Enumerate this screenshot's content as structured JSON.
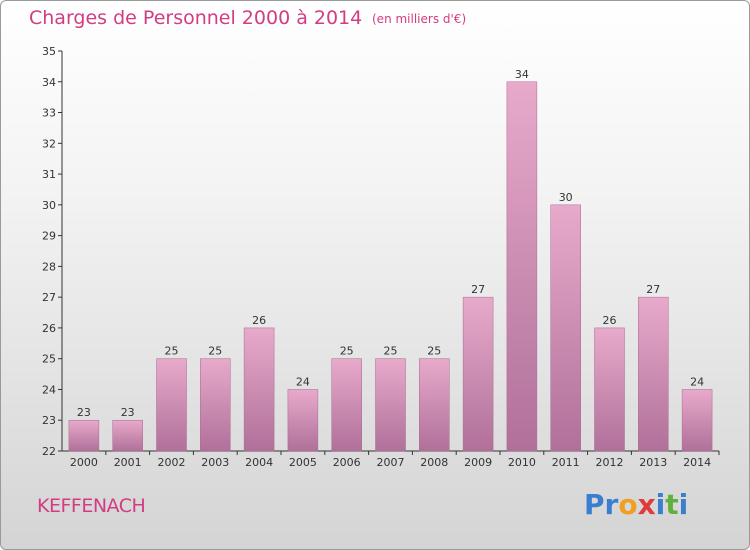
{
  "header": {
    "title": "Charges de Personnel 2000 à 2014",
    "subtitle": "(en milliers d'€)"
  },
  "footer": {
    "town": "KEFFENACH",
    "brand": [
      "P",
      "r",
      "o",
      "x",
      "i",
      "t",
      "i"
    ]
  },
  "colors": {
    "title": "#d23c82",
    "bar_top": "#e8aacb",
    "bar_bottom": "#b0709a",
    "brand": [
      "#3a7fcf",
      "#3a7fcf",
      "#f0a020",
      "#e03a3a",
      "#3a7fcf",
      "#60b040",
      "#3a7fcf"
    ]
  },
  "chart_data": {
    "type": "bar",
    "categories": [
      "2000",
      "2001",
      "2002",
      "2003",
      "2004",
      "2005",
      "2006",
      "2007",
      "2008",
      "2009",
      "2010",
      "2011",
      "2012",
      "2013",
      "2014"
    ],
    "values": [
      23,
      23,
      25,
      25,
      26,
      24,
      25,
      25,
      25,
      27,
      34,
      30,
      26,
      27,
      24
    ],
    "ylim": [
      22,
      35
    ],
    "yticks": [
      22,
      23,
      24,
      25,
      26,
      27,
      28,
      29,
      30,
      31,
      32,
      33,
      34,
      35
    ],
    "grid": false
  }
}
